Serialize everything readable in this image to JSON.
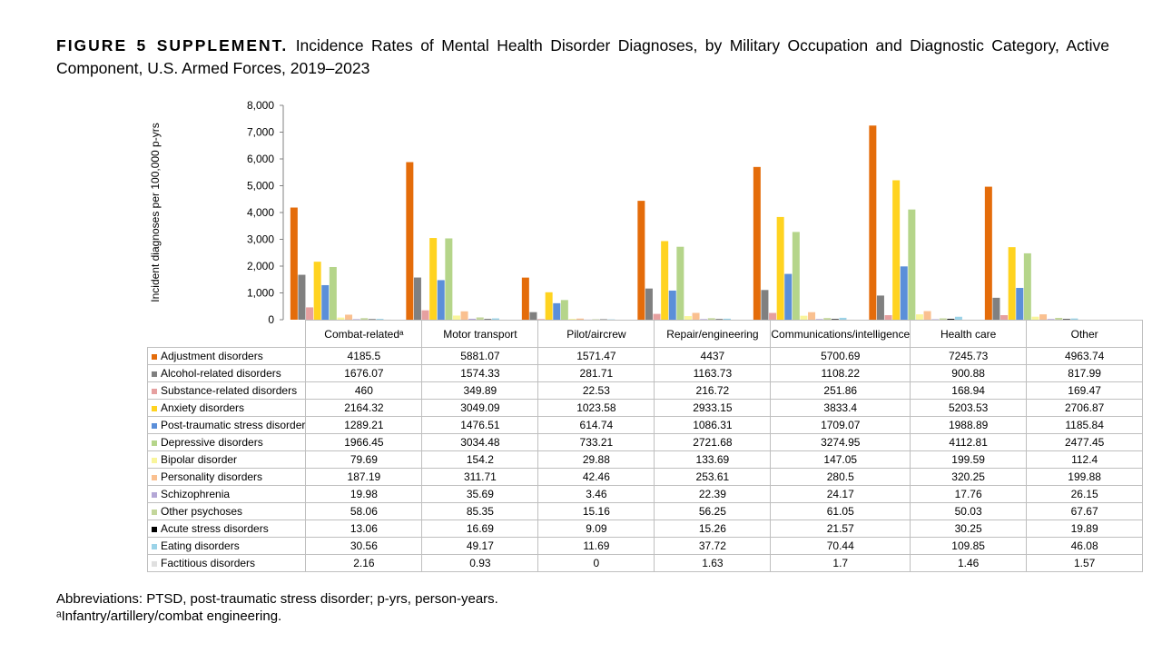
{
  "title": {
    "lead": "FIGURE 5 SUPPLEMENT.",
    "text": " Incidence Rates of Mental Health Disorder Diagnoses, by Military Occupation and Diagnostic Category, Active Component, U.S. Armed Forces, 2019–2023"
  },
  "notes": [
    "Abbreviations: PTSD, post-traumatic stress disorder; p-yrs, person-years.",
    "ᵃInfantry/artillery/combat engineering."
  ],
  "chart_data": {
    "type": "bar",
    "ylabel": "Incident diagnoses per 100,000 p-yrs",
    "ylim": [
      0,
      8000
    ],
    "yticks": [
      "0",
      "1,000",
      "2,000",
      "3,000",
      "4,000",
      "5,000",
      "6,000",
      "7,000",
      "8,000"
    ],
    "grid": false,
    "legend": "data table below chart",
    "categories": [
      "Combat-relatedᵃ",
      "Motor transport",
      "Pilot/aircrew",
      "Repair/engineering",
      "Communications/intelligence",
      "Health care",
      "Other"
    ],
    "series": [
      {
        "name": "Adjustment disorders",
        "color": "#E46C0A",
        "values": [
          4185.5,
          5881.07,
          1571.47,
          4437,
          5700.69,
          7245.73,
          4963.74
        ]
      },
      {
        "name": "Alcohol-related disorders",
        "color": "#808080",
        "values": [
          1676.07,
          1574.33,
          281.71,
          1163.73,
          1108.22,
          900.88,
          817.99
        ]
      },
      {
        "name": "Substance-related disorders",
        "color": "#E6A0A0",
        "values": [
          460,
          349.89,
          22.53,
          216.72,
          251.86,
          168.94,
          169.47
        ]
      },
      {
        "name": "Anxiety disorders",
        "color": "#FFD320",
        "values": [
          2164.32,
          3049.09,
          1023.58,
          2933.15,
          3833.4,
          5203.53,
          2706.87
        ]
      },
      {
        "name": "Post-traumatic stress disorder",
        "color": "#5B8FD9",
        "values": [
          1289.21,
          1476.51,
          614.74,
          1086.31,
          1709.07,
          1988.89,
          1185.84
        ]
      },
      {
        "name": "Depressive disorders",
        "color": "#B5D58A",
        "values": [
          1966.45,
          3034.48,
          733.21,
          2721.68,
          3274.95,
          4112.81,
          2477.45
        ]
      },
      {
        "name": "Bipolar disorder",
        "color": "#F9F59B",
        "values": [
          79.69,
          154.2,
          29.88,
          133.69,
          147.05,
          199.59,
          112.4
        ]
      },
      {
        "name": "Personality disorders",
        "color": "#FAC090",
        "values": [
          187.19,
          311.71,
          42.46,
          253.61,
          280.5,
          320.25,
          199.88
        ]
      },
      {
        "name": "Schizophrenia",
        "color": "#B4A7D6",
        "values": [
          19.98,
          35.69,
          3.46,
          22.39,
          24.17,
          17.76,
          26.15
        ]
      },
      {
        "name": "Other psychoses",
        "color": "#C3D69B",
        "values": [
          58.06,
          85.35,
          15.16,
          56.25,
          61.05,
          50.03,
          67.67
        ]
      },
      {
        "name": "Acute stress disorders",
        "color": "#000000",
        "values": [
          13.06,
          16.69,
          9.09,
          15.26,
          21.57,
          30.25,
          19.89
        ]
      },
      {
        "name": "Eating disorders",
        "color": "#9BD3E8",
        "values": [
          30.56,
          49.17,
          11.69,
          37.72,
          70.44,
          109.85,
          46.08
        ]
      },
      {
        "name": "Factitious disorders",
        "color": "#E0E0E0",
        "values": [
          2.16,
          0.93,
          0,
          1.63,
          1.7,
          1.46,
          1.57
        ]
      }
    ],
    "table_values": [
      [
        "4185.5",
        "5881.07",
        "1571.47",
        "4437",
        "5700.69",
        "7245.73",
        "4963.74"
      ],
      [
        "1676.07",
        "1574.33",
        "281.71",
        "1163.73",
        "1108.22",
        "900.88",
        "817.99"
      ],
      [
        "460",
        "349.89",
        "22.53",
        "216.72",
        "251.86",
        "168.94",
        "169.47"
      ],
      [
        "2164.32",
        "3049.09",
        "1023.58",
        "2933.15",
        "3833.4",
        "5203.53",
        "2706.87"
      ],
      [
        "1289.21",
        "1476.51",
        "614.74",
        "1086.31",
        "1709.07",
        "1988.89",
        "1185.84"
      ],
      [
        "1966.45",
        "3034.48",
        "733.21",
        "2721.68",
        "3274.95",
        "4112.81",
        "2477.45"
      ],
      [
        "79.69",
        "154.2",
        "29.88",
        "133.69",
        "147.05",
        "199.59",
        "112.4"
      ],
      [
        "187.19",
        "311.71",
        "42.46",
        "253.61",
        "280.5",
        "320.25",
        "199.88"
      ],
      [
        "19.98",
        "35.69",
        "3.46",
        "22.39",
        "24.17",
        "17.76",
        "26.15"
      ],
      [
        "58.06",
        "85.35",
        "15.16",
        "56.25",
        "61.05",
        "50.03",
        "67.67"
      ],
      [
        "13.06",
        "16.69",
        "9.09",
        "15.26",
        "21.57",
        "30.25",
        "19.89"
      ],
      [
        "30.56",
        "49.17",
        "11.69",
        "37.72",
        "70.44",
        "109.85",
        "46.08"
      ],
      [
        "2.16",
        "0.93",
        "0",
        "1.63",
        "1.7",
        "1.46",
        "1.57"
      ]
    ]
  }
}
